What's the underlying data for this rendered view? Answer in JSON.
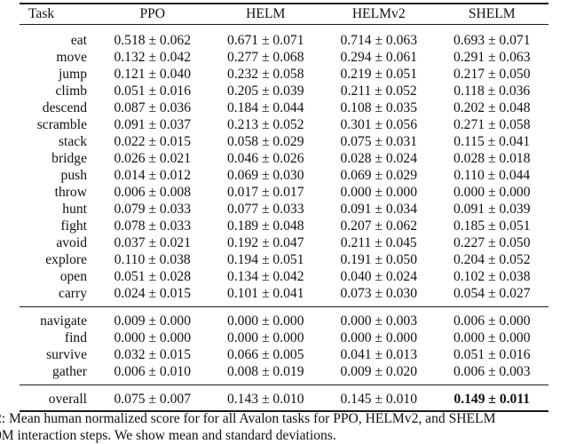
{
  "table": {
    "headers": [
      "Task",
      "PPO",
      "HELM",
      "HELMv2",
      "SHELM"
    ],
    "groups": [
      {
        "rows": [
          {
            "task": "eat",
            "ppo": "0.518 ± 0.062",
            "helm": "0.671 ± 0.071",
            "helmv2": "0.714 ± 0.063",
            "shelm": "0.693 ± 0.071"
          },
          {
            "task": "move",
            "ppo": "0.132 ± 0.042",
            "helm": "0.277 ± 0.068",
            "helmv2": "0.294 ± 0.061",
            "shelm": "0.291 ± 0.063"
          },
          {
            "task": "jump",
            "ppo": "0.121 ± 0.040",
            "helm": "0.232 ± 0.058",
            "helmv2": "0.219 ± 0.051",
            "shelm": "0.217 ± 0.050"
          },
          {
            "task": "climb",
            "ppo": "0.051 ± 0.016",
            "helm": "0.205 ± 0.039",
            "helmv2": "0.211 ± 0.052",
            "shelm": "0.118 ± 0.036"
          },
          {
            "task": "descend",
            "ppo": "0.087 ± 0.036",
            "helm": "0.184 ± 0.044",
            "helmv2": "0.108 ± 0.035",
            "shelm": "0.202 ± 0.048"
          },
          {
            "task": "scramble",
            "ppo": "0.091 ± 0.037",
            "helm": "0.213 ± 0.052",
            "helmv2": "0.301 ± 0.056",
            "shelm": "0.271 ± 0.058"
          },
          {
            "task": "stack",
            "ppo": "0.022 ± 0.015",
            "helm": "0.058 ± 0.029",
            "helmv2": "0.075 ± 0.031",
            "shelm": "0.115 ± 0.041"
          },
          {
            "task": "bridge",
            "ppo": "0.026 ± 0.021",
            "helm": "0.046 ± 0.026",
            "helmv2": "0.028 ± 0.024",
            "shelm": "0.028 ± 0.018"
          },
          {
            "task": "push",
            "ppo": "0.014 ± 0.012",
            "helm": "0.069 ± 0.030",
            "helmv2": "0.069 ± 0.029",
            "shelm": "0.110 ± 0.044"
          },
          {
            "task": "throw",
            "ppo": "0.006 ± 0.008",
            "helm": "0.017 ± 0.017",
            "helmv2": "0.000 ± 0.000",
            "shelm": "0.000 ± 0.000"
          },
          {
            "task": "hunt",
            "ppo": "0.079 ± 0.033",
            "helm": "0.077 ± 0.033",
            "helmv2": "0.091 ± 0.034",
            "shelm": "0.091 ± 0.039"
          },
          {
            "task": "fight",
            "ppo": "0.078 ± 0.033",
            "helm": "0.189 ± 0.048",
            "helmv2": "0.207 ± 0.062",
            "shelm": "0.185 ± 0.051"
          },
          {
            "task": "avoid",
            "ppo": "0.037 ± 0.021",
            "helm": "0.192 ± 0.047",
            "helmv2": "0.211 ± 0.045",
            "shelm": "0.227 ± 0.050"
          },
          {
            "task": "explore",
            "ppo": "0.110 ± 0.038",
            "helm": "0.194 ± 0.051",
            "helmv2": "0.191 ± 0.050",
            "shelm": "0.204 ± 0.052"
          },
          {
            "task": "open",
            "ppo": "0.051 ± 0.028",
            "helm": "0.134 ± 0.042",
            "helmv2": "0.040 ± 0.024",
            "shelm": "0.102 ± 0.038"
          },
          {
            "task": "carry",
            "ppo": "0.024 ± 0.015",
            "helm": "0.101 ± 0.041",
            "helmv2": "0.073 ± 0.030",
            "shelm": "0.054 ± 0.027"
          }
        ]
      },
      {
        "rows": [
          {
            "task": "navigate",
            "ppo": "0.009 ± 0.000",
            "helm": "0.000 ± 0.000",
            "helmv2": "0.000 ± 0.003",
            "shelm": "0.006 ± 0.000"
          },
          {
            "task": "find",
            "ppo": "0.000 ± 0.000",
            "helm": "0.000 ± 0.000",
            "helmv2": "0.000 ± 0.000",
            "shelm": "0.000 ± 0.000"
          },
          {
            "task": "survive",
            "ppo": "0.032 ± 0.015",
            "helm": "0.066 ± 0.005",
            "helmv2": "0.041 ± 0.013",
            "shelm": "0.051 ± 0.016"
          },
          {
            "task": "gather",
            "ppo": "0.006 ± 0.010",
            "helm": "0.008 ± 0.019",
            "helmv2": "0.009 ± 0.020",
            "shelm": "0.006 ± 0.003"
          }
        ]
      }
    ],
    "overall": {
      "task": "overall",
      "ppo": "0.075 ± 0.007",
      "helm": "0.143 ± 0.010",
      "helmv2": "0.145 ± 0.010",
      "shelm": "0.149 ± 0.011",
      "shelm_bold": true
    }
  },
  "caption": {
    "line1": "2: Mean human normalized score for for all Avalon tasks for PPO, HELMv2, and SHELM",
    "line2": "0M interaction steps. We show mean and standard deviations."
  }
}
